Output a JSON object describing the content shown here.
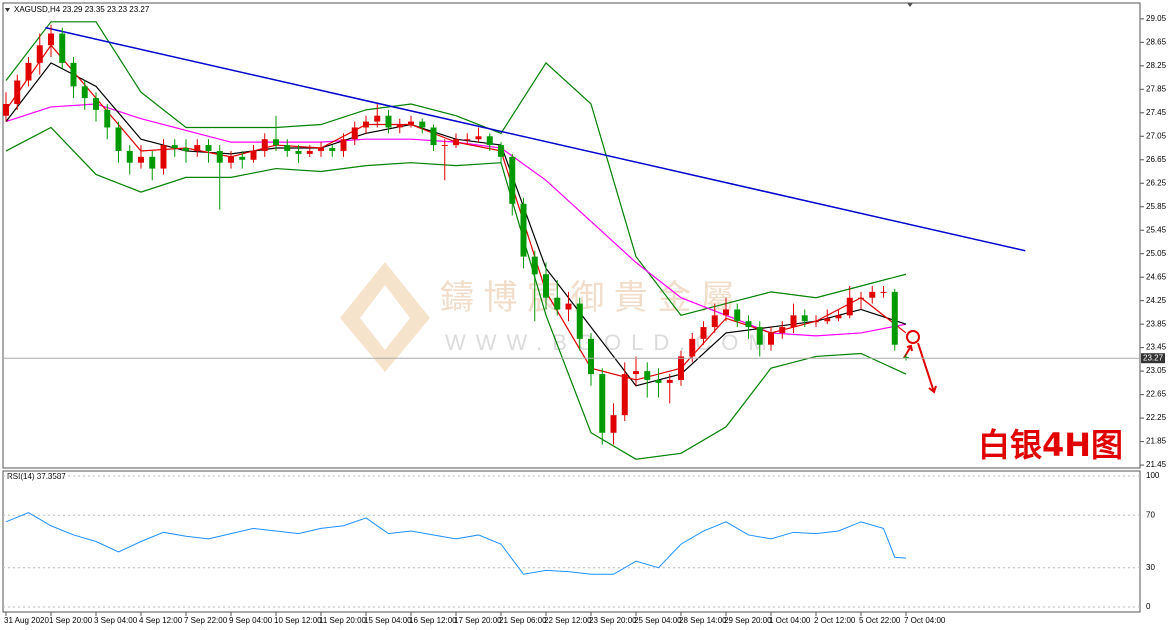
{
  "watermark": {
    "name": "鑄 博 宸 御 貴 金 屬",
    "site": "WWW.BGOLD.COM"
  },
  "chart_data": [
    {
      "type": "candlestick",
      "symbol": "XAGUSD,H4",
      "annotation": "白银4H图",
      "up_color": "#e00000",
      "down_color": "#009a00",
      "price_line_color": "#aaaaaa",
      "ylim": [
        21.4,
        29.32
      ],
      "yticks": [
        29.05,
        28.65,
        28.25,
        27.85,
        27.45,
        27.05,
        26.65,
        26.25,
        25.85,
        25.45,
        25.05,
        24.65,
        24.25,
        23.85,
        23.45,
        23.05,
        22.65,
        22.25,
        21.85,
        21.45
      ],
      "categories": [
        "31 Aug 2020",
        null,
        null,
        null,
        "1 Sep 20:00",
        null,
        null,
        null,
        "3 Sep 04:00",
        null,
        null,
        null,
        "4 Sep 12:00",
        null,
        null,
        null,
        "7 Sep 22:00",
        null,
        null,
        null,
        "9 Sep 04:00",
        null,
        null,
        null,
        "10 Sep 12:00",
        null,
        null,
        null,
        "11 Sep 20:00",
        null,
        null,
        null,
        "15 Sep 04:00",
        null,
        null,
        null,
        "16 Sep 12:00",
        null,
        null,
        null,
        "17 Sep 20:00",
        null,
        null,
        null,
        "21 Sep 06:00",
        null,
        null,
        null,
        "22 Sep 12:00",
        null,
        null,
        null,
        "23 Sep 20:00",
        null,
        null,
        null,
        "25 Sep 04:00",
        null,
        null,
        null,
        "28 Sep 14:00",
        null,
        null,
        null,
        "29 Sep 20:00",
        null,
        null,
        null,
        "1 Oct 04:00",
        null,
        null,
        null,
        "2 Oct 12:00",
        null,
        null,
        null,
        "5 Oct 22:00",
        null,
        null,
        null,
        "7 Oct 04:00"
      ],
      "ohlc": [
        [
          27.4,
          27.8,
          27.3,
          27.6
        ],
        [
          27.6,
          28.1,
          27.5,
          28.0
        ],
        [
          28.0,
          28.4,
          27.9,
          28.3
        ],
        [
          28.3,
          28.8,
          28.1,
          28.6
        ],
        [
          28.6,
          28.95,
          28.4,
          28.8
        ],
        [
          28.8,
          28.9,
          28.2,
          28.3
        ],
        [
          28.3,
          28.4,
          27.7,
          27.9
        ],
        [
          27.9,
          28.0,
          27.5,
          27.7
        ],
        [
          27.7,
          27.8,
          27.3,
          27.5
        ],
        [
          27.5,
          27.6,
          27.0,
          27.2
        ],
        [
          27.2,
          27.3,
          26.6,
          26.8
        ],
        [
          26.8,
          26.9,
          26.4,
          26.6
        ],
        [
          26.6,
          26.9,
          26.5,
          26.7
        ],
        [
          26.7,
          26.8,
          26.3,
          26.5
        ],
        [
          26.5,
          27.0,
          26.4,
          26.9
        ],
        [
          26.9,
          27.0,
          26.7,
          26.85
        ],
        [
          26.85,
          27.0,
          26.6,
          26.8
        ],
        [
          26.8,
          27.0,
          26.7,
          26.9
        ],
        [
          26.9,
          27.0,
          26.6,
          26.8
        ],
        [
          26.8,
          26.9,
          25.8,
          26.6
        ],
        [
          26.6,
          26.8,
          26.5,
          26.7
        ],
        [
          26.7,
          26.8,
          26.5,
          26.65
        ],
        [
          26.65,
          26.9,
          26.6,
          26.8
        ],
        [
          26.8,
          27.1,
          26.7,
          27.0
        ],
        [
          27.0,
          27.4,
          26.8,
          26.9
        ],
        [
          26.9,
          27.0,
          26.7,
          26.8
        ],
        [
          26.8,
          26.9,
          26.6,
          26.75
        ],
        [
          26.75,
          26.9,
          26.7,
          26.8
        ],
        [
          26.8,
          26.95,
          26.7,
          26.85
        ],
        [
          26.85,
          26.9,
          26.7,
          26.8
        ],
        [
          26.8,
          27.1,
          26.7,
          27.0
        ],
        [
          27.0,
          27.3,
          26.9,
          27.2
        ],
        [
          27.2,
          27.4,
          27.1,
          27.3
        ],
        [
          27.3,
          27.6,
          27.2,
          27.4
        ],
        [
          27.4,
          27.5,
          27.1,
          27.2
        ],
        [
          27.2,
          27.35,
          27.1,
          27.25
        ],
        [
          27.25,
          27.4,
          27.2,
          27.3
        ],
        [
          27.3,
          27.35,
          27.1,
          27.2
        ],
        [
          27.2,
          27.25,
          26.8,
          26.9
        ],
        [
          26.9,
          27.0,
          26.3,
          26.9
        ],
        [
          26.9,
          27.1,
          26.85,
          27.0
        ],
        [
          27.0,
          27.1,
          26.9,
          27.0
        ],
        [
          27.0,
          27.2,
          26.95,
          27.05
        ],
        [
          27.05,
          27.1,
          26.8,
          26.9
        ],
        [
          26.9,
          26.95,
          26.6,
          26.7
        ],
        [
          26.7,
          26.75,
          25.7,
          25.9
        ],
        [
          25.9,
          26.0,
          24.8,
          25.0
        ],
        [
          25.0,
          25.1,
          23.9,
          24.7
        ],
        [
          24.7,
          24.9,
          24.1,
          24.3
        ],
        [
          24.3,
          24.6,
          24.0,
          24.1
        ],
        [
          24.1,
          24.4,
          23.9,
          24.2
        ],
        [
          24.2,
          24.3,
          23.4,
          23.6
        ],
        [
          23.6,
          23.7,
          22.8,
          23.0
        ],
        [
          23.0,
          23.1,
          21.8,
          22.0
        ],
        [
          22.0,
          22.5,
          21.8,
          22.3
        ],
        [
          22.3,
          23.2,
          22.2,
          23.0
        ],
        [
          23.0,
          23.3,
          22.8,
          23.05
        ],
        [
          23.05,
          23.2,
          22.6,
          22.9
        ],
        [
          22.9,
          23.1,
          22.6,
          22.85
        ],
        [
          22.85,
          23.0,
          22.5,
          22.9
        ],
        [
          22.9,
          23.4,
          22.8,
          23.3
        ],
        [
          23.3,
          23.7,
          23.2,
          23.6
        ],
        [
          23.6,
          23.9,
          23.5,
          23.8
        ],
        [
          23.8,
          24.2,
          23.7,
          24.0
        ],
        [
          24.0,
          24.3,
          23.9,
          24.1
        ],
        [
          24.1,
          24.2,
          23.8,
          23.9
        ],
        [
          23.9,
          24.0,
          23.6,
          23.8
        ],
        [
          23.8,
          23.9,
          23.3,
          23.5
        ],
        [
          23.5,
          23.8,
          23.4,
          23.7
        ],
        [
          23.7,
          23.9,
          23.6,
          23.8
        ],
        [
          23.8,
          24.2,
          23.7,
          24.0
        ],
        [
          24.0,
          24.1,
          23.8,
          23.9
        ],
        [
          23.9,
          24.0,
          23.8,
          23.9
        ],
        [
          23.9,
          24.1,
          23.85,
          23.95
        ],
        [
          23.95,
          24.1,
          23.9,
          24.0
        ],
        [
          24.0,
          24.5,
          23.95,
          24.3
        ],
        [
          24.3,
          24.4,
          24.1,
          24.3
        ],
        [
          24.3,
          24.5,
          24.2,
          24.4
        ],
        [
          24.4,
          24.5,
          24.3,
          24.4
        ],
        [
          24.4,
          24.45,
          23.4,
          23.5
        ],
        [
          23.29,
          23.35,
          23.23,
          23.27
        ]
      ],
      "lines": [
        {
          "color": "#008000",
          "x": [
            0,
            4,
            8,
            12,
            16,
            20,
            24,
            28,
            32,
            36,
            40,
            44,
            48,
            52,
            56,
            60,
            64,
            68,
            72,
            76,
            80
          ],
          "values": [
            28.0,
            29.0,
            29.0,
            27.8,
            27.2,
            27.2,
            27.2,
            27.25,
            27.5,
            27.6,
            27.4,
            27.1,
            28.3,
            27.6,
            25.0,
            24.0,
            24.2,
            24.4,
            24.3,
            24.5,
            24.7
          ]
        },
        {
          "color": "#008000",
          "x": [
            0,
            4,
            8,
            12,
            16,
            20,
            24,
            28,
            32,
            36,
            40,
            44,
            48,
            52,
            56,
            60,
            64,
            68,
            72,
            76,
            80
          ],
          "values": [
            26.8,
            27.2,
            26.4,
            26.1,
            26.35,
            26.35,
            26.5,
            26.45,
            26.55,
            26.6,
            26.55,
            26.6,
            24.0,
            22.0,
            21.55,
            21.65,
            22.1,
            23.1,
            23.3,
            23.35,
            23.0
          ]
        },
        {
          "color": "#ff00ff",
          "x": [
            0,
            4,
            8,
            12,
            16,
            20,
            24,
            28,
            32,
            36,
            40,
            44,
            48,
            52,
            56,
            60,
            64,
            68,
            72,
            76,
            80
          ],
          "values": [
            27.3,
            27.55,
            27.6,
            27.35,
            27.15,
            26.95,
            26.95,
            26.95,
            27.0,
            27.0,
            26.95,
            26.85,
            26.3,
            25.6,
            24.9,
            24.3,
            24.0,
            23.7,
            23.65,
            23.7,
            23.85
          ]
        },
        {
          "color": "#000000",
          "x": [
            0,
            4,
            8,
            12,
            16,
            20,
            24,
            28,
            32,
            36,
            40,
            44,
            48,
            52,
            56,
            60,
            64,
            68,
            72,
            76,
            80
          ],
          "values": [
            27.3,
            28.3,
            27.9,
            27.0,
            26.8,
            26.75,
            26.85,
            26.85,
            27.1,
            27.25,
            27.0,
            26.9,
            24.8,
            23.8,
            22.8,
            23.0,
            23.7,
            23.8,
            23.9,
            24.1,
            23.85
          ]
        },
        {
          "color": "#e00000",
          "x": [
            0,
            4,
            8,
            12,
            16,
            20,
            24,
            28,
            32,
            36,
            40,
            44,
            48,
            52,
            56,
            60,
            64,
            68,
            72,
            76,
            80
          ],
          "values": [
            27.5,
            28.6,
            27.7,
            26.8,
            26.85,
            26.7,
            26.9,
            26.85,
            27.25,
            27.25,
            26.95,
            26.8,
            24.4,
            23.1,
            22.9,
            23.1,
            23.95,
            23.7,
            23.9,
            24.3,
            23.7
          ]
        },
        {
          "color": "#0000cc",
          "x": [
            3.5,
            90.6
          ],
          "values": [
            28.9,
            25.1
          ]
        }
      ]
    },
    {
      "type": "line",
      "title": "RSI(14)",
      "ylim": [
        -3.8,
        103.8
      ],
      "yticks": [
        100,
        70,
        30,
        0
      ],
      "series": [
        {
          "color": "#1e90ff",
          "x": [
            0,
            2,
            4,
            6,
            8,
            10,
            12,
            14,
            16,
            18,
            20,
            22,
            24,
            26,
            28,
            30,
            32,
            34,
            36,
            38,
            40,
            42,
            44,
            46,
            48,
            50,
            52,
            54,
            56,
            58,
            60,
            62,
            64,
            66,
            68,
            70,
            72,
            74,
            76,
            78,
            79,
            80
          ],
          "values": [
            65,
            72,
            62,
            55,
            50,
            42,
            50,
            57,
            54,
            52,
            56,
            60,
            58,
            56,
            60,
            62,
            68,
            56,
            58,
            55,
            52,
            55,
            48,
            25,
            28,
            27,
            25,
            25,
            35,
            30,
            48,
            58,
            65,
            55,
            52,
            57,
            56,
            58,
            65,
            60,
            38,
            37.3587
          ]
        }
      ]
    }
  ]
}
